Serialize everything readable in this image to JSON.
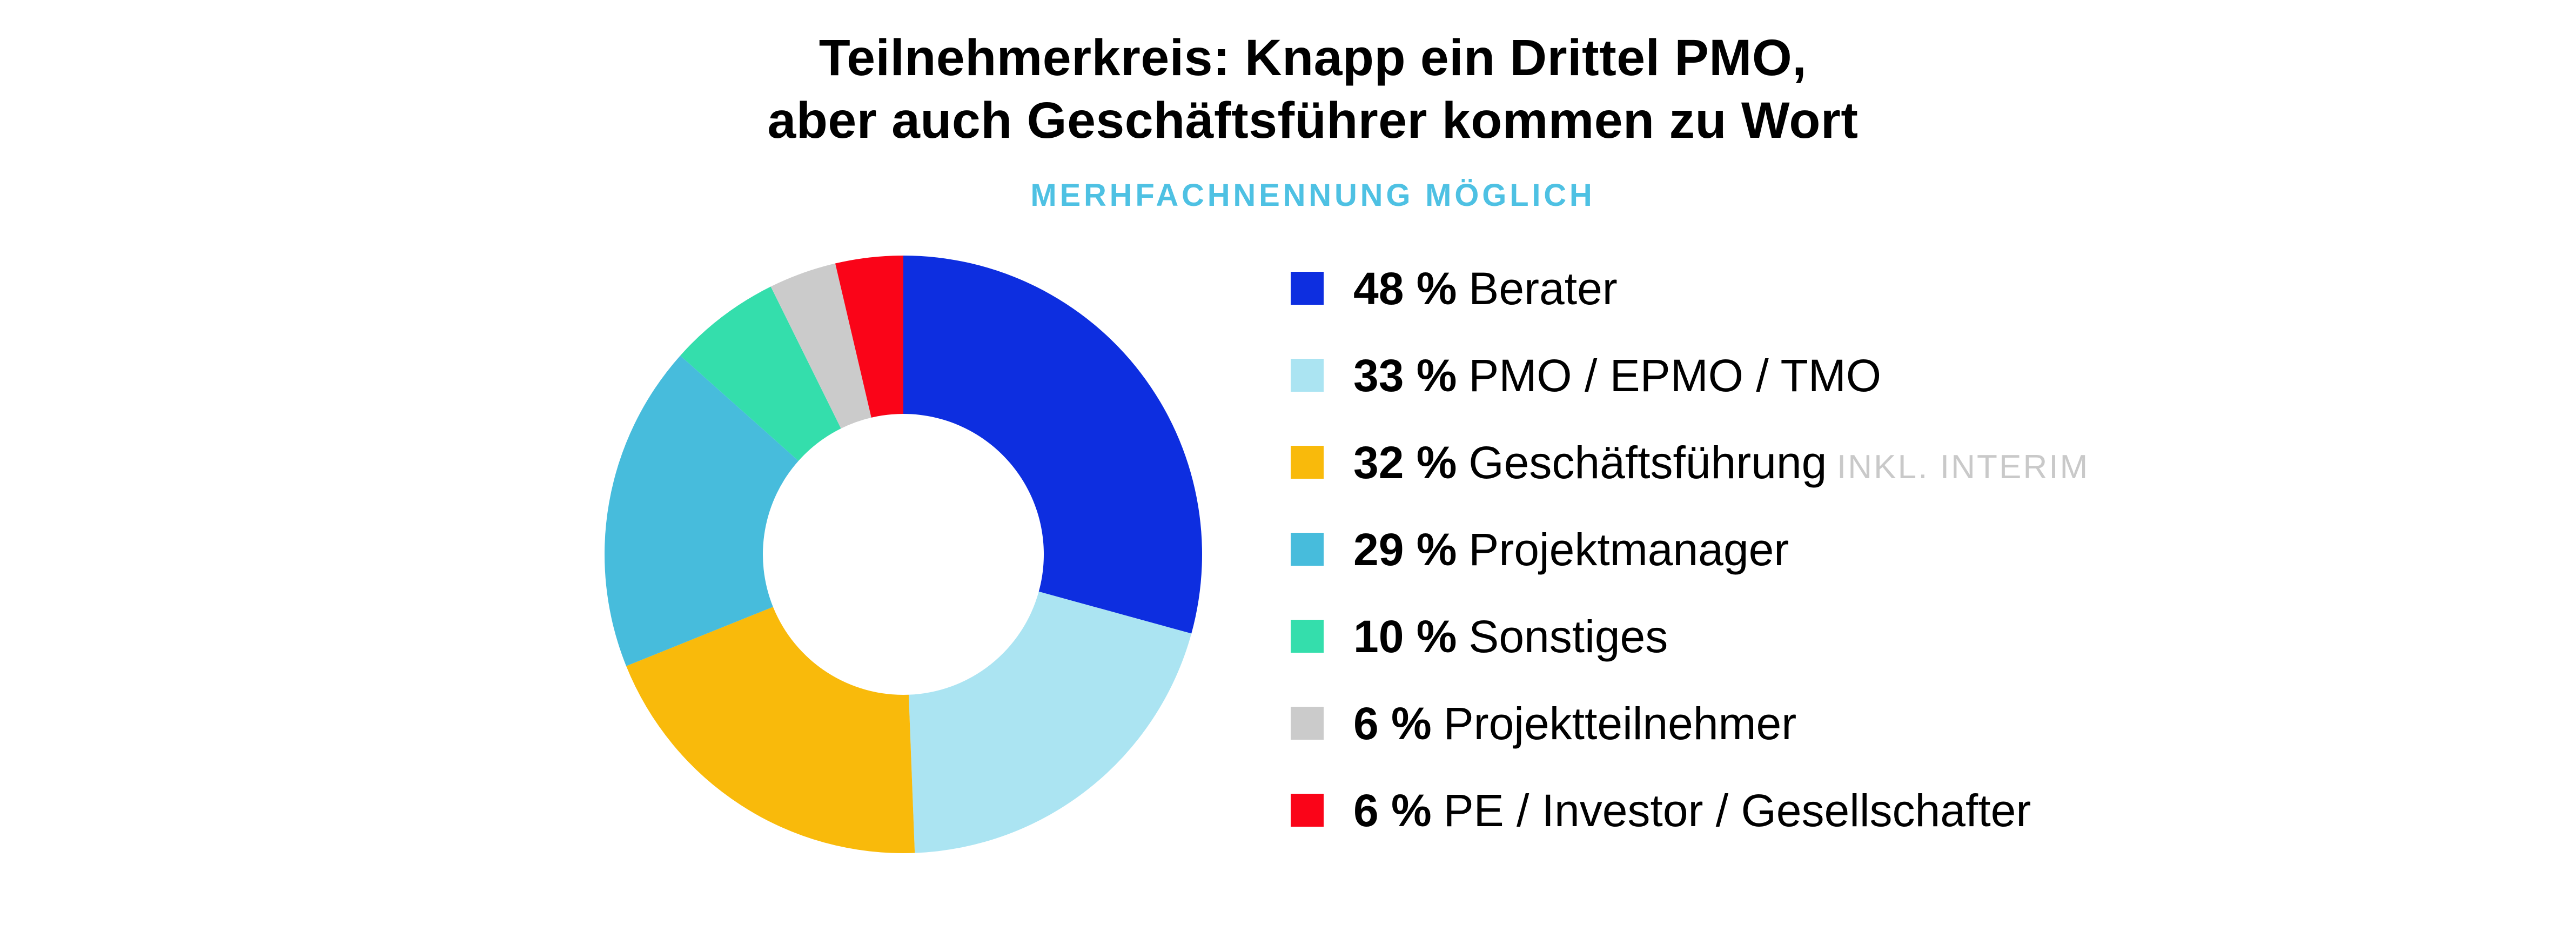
{
  "title": {
    "line1": "Teilnehmerkreis: Knapp ein Drittel PMO,",
    "line2": "aber auch Geschäftsführer kommen zu Wort"
  },
  "subtitle": "MERHFACHNENNUNG MÖGLICH",
  "palette": {
    "background": "#ffffff",
    "title_text": "#000000",
    "subtitle_accent": "#4ec1e3",
    "legend_text": "#000000",
    "legend_suffix_gray": "#c9c9c9"
  },
  "chart_data": {
    "type": "pie",
    "variant": "donut",
    "title": "Teilnehmerkreis: Knapp ein Drittel PMO, aber auch Geschäftsführer kommen zu Wort",
    "subtitle": "MERHFACHNENNUNG MÖGLICH",
    "unit": "%",
    "categories": [
      "Berater",
      "PMO / EPMO / TMO",
      "Geschäftsführung INKL. INTERIM",
      "Projektmanager",
      "Sonstiges",
      "Projektteilnehmer",
      "PE / Investor / Gesellschafter"
    ],
    "values": [
      48,
      33,
      32,
      29,
      10,
      6,
      6
    ],
    "colors": [
      "#0d2ee0",
      "#abe4f2",
      "#f9ba0b",
      "#47bcdc",
      "#34deac",
      "#cbcbcb",
      "#fa0418"
    ],
    "start_angle_deg_from_top": 0,
    "direction": "clockwise",
    "donut_hole_ratio": 0.47,
    "grid": false,
    "legend_position": "right",
    "legend": [
      {
        "pct": "48 %",
        "label": "Berater",
        "suffix": "",
        "color": "#0d2ee0"
      },
      {
        "pct": "33 %",
        "label": "PMO / EPMO / TMO",
        "suffix": "",
        "color": "#abe4f2"
      },
      {
        "pct": "32 %",
        "label": "Geschäftsführung",
        "suffix": "INKL. INTERIM",
        "color": "#f9ba0b"
      },
      {
        "pct": "29 %",
        "label": "Projektmanager",
        "suffix": "",
        "color": "#47bcdc"
      },
      {
        "pct": "10 %",
        "label": "Sonstiges",
        "suffix": "",
        "color": "#34deac"
      },
      {
        "pct": "6 %",
        "label": "Projektteilnehmer",
        "suffix": "",
        "color": "#cbcbcb"
      },
      {
        "pct": "6 %",
        "label": "PE / Investor / Gesellschafter",
        "suffix": "",
        "color": "#fa0418"
      }
    ]
  }
}
